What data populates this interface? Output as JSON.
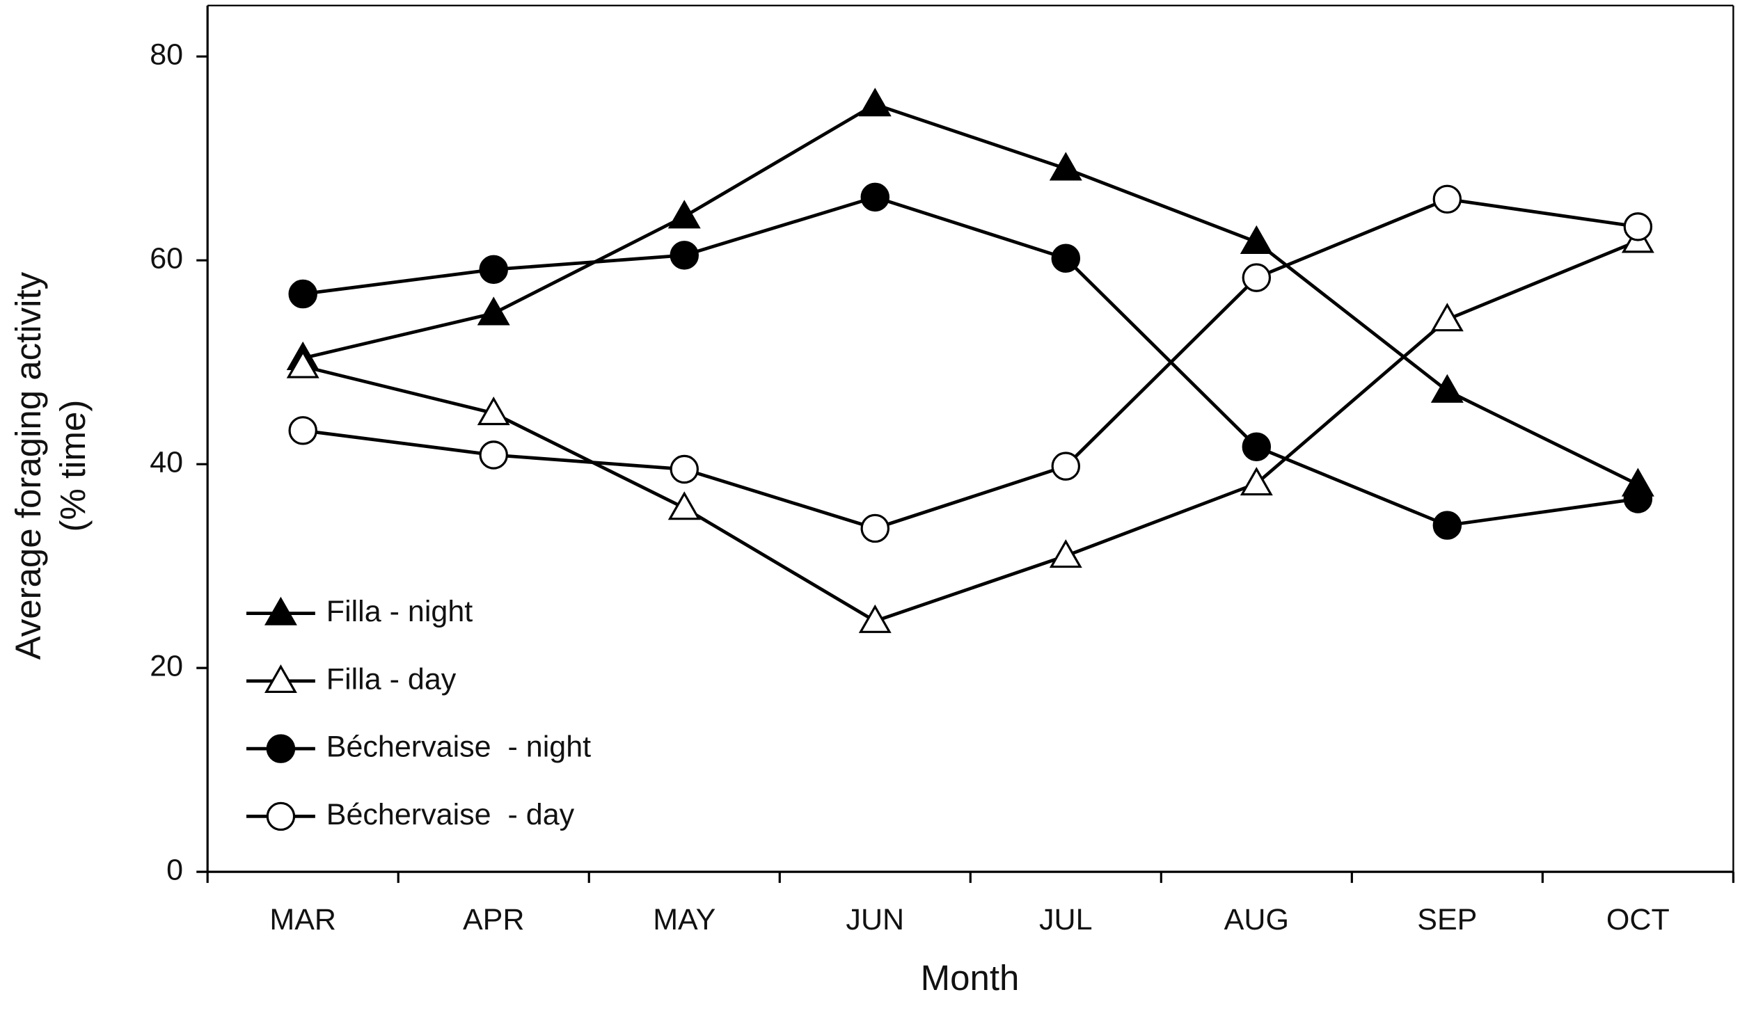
{
  "chart_data": {
    "type": "line",
    "xlabel": "Month",
    "ylabel": [
      "Average foraging activity",
      "(% time)"
    ],
    "categories": [
      "MAR",
      "APR",
      "MAY",
      "JUN",
      "JUL",
      "AUG",
      "SEP",
      "OCT"
    ],
    "ylim": [
      0,
      85
    ],
    "yticks": [
      0,
      20,
      40,
      60,
      80
    ],
    "legend": "lower-left",
    "series": [
      {
        "name": "Filla - night",
        "color": "#000000",
        "marker": "triangle",
        "fill": "#000000",
        "values": [
          50.4,
          54.8,
          64.3,
          75.3,
          69.0,
          61.8,
          47.2,
          38.0
        ]
      },
      {
        "name": "Filla - day",
        "color": "#000000",
        "marker": "triangle",
        "fill": "#ffffff",
        "values": [
          49.6,
          45.0,
          35.7,
          24.6,
          31.0,
          38.1,
          54.2,
          61.9
        ]
      },
      {
        "name": "Béchervaise  - night",
        "color": "#000000",
        "marker": "circle",
        "fill": "#000000",
        "values": [
          56.7,
          59.1,
          60.5,
          66.2,
          60.2,
          41.7,
          34.0,
          36.6
        ]
      },
      {
        "name": "Béchervaise  - day",
        "color": "#000000",
        "marker": "circle",
        "fill": "#ffffff",
        "values": [
          43.3,
          40.9,
          39.5,
          33.7,
          39.8,
          58.3,
          66.0,
          63.3
        ]
      }
    ]
  }
}
